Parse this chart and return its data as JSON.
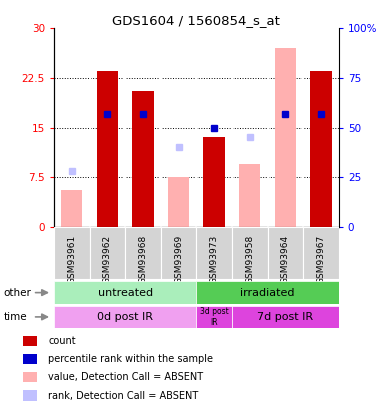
{
  "title": "GDS1604 / 1560854_s_at",
  "samples": [
    "GSM93961",
    "GSM93962",
    "GSM93968",
    "GSM93969",
    "GSM93973",
    "GSM93958",
    "GSM93964",
    "GSM93967"
  ],
  "count_values": [
    0,
    23.5,
    20.5,
    0,
    13.5,
    0,
    0,
    23.5
  ],
  "count_absent": [
    5.5,
    0,
    0,
    7.5,
    0,
    9.5,
    27,
    0
  ],
  "rank_values": [
    0,
    57,
    57,
    0,
    50,
    0,
    57,
    57
  ],
  "rank_absent": [
    28,
    0,
    0,
    40,
    0,
    45,
    0,
    0
  ],
  "count_color": "#cc0000",
  "count_absent_color": "#ffb0b0",
  "rank_color": "#0000cc",
  "rank_absent_color": "#c0c0ff",
  "ylim_left": [
    0,
    30
  ],
  "ylim_right": [
    0,
    100
  ],
  "yticks_left": [
    0,
    7.5,
    15,
    22.5,
    30
  ],
  "yticks_right": [
    0,
    25,
    50,
    75,
    100
  ],
  "ytick_labels_left": [
    "0",
    "7.5",
    "15",
    "22.5",
    "30"
  ],
  "ytick_labels_right": [
    "0",
    "25",
    "50",
    "75",
    "100%"
  ],
  "untreated_color": "#aaeebb",
  "irradiated_color": "#55cc55",
  "time0_color": "#f0a0f0",
  "time3_color": "#dd44dd",
  "time7_color": "#dd44dd",
  "bar_width": 0.6
}
